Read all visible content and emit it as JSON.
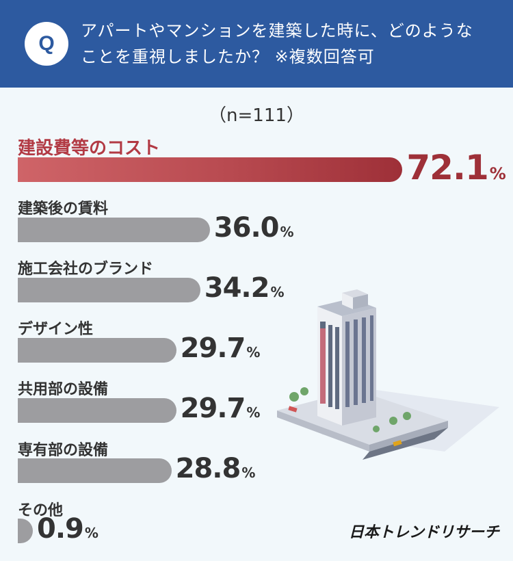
{
  "header": {
    "badge": "Q",
    "question_line1": "アパートやマンションを建築した時に、どのような",
    "question_line2": "ことを重視しましたか？ ※複数回答可"
  },
  "sample_size": "（n=111）",
  "brand": "日本トレンドリサーチ",
  "colors": {
    "header": "#2d5aa0",
    "highlight": "#b23a44",
    "bar": "#9d9da0"
  },
  "chart_data": {
    "type": "bar",
    "orientation": "horizontal",
    "unit": "%",
    "categories": [
      "建設費等のコスト",
      "建築後の賃料",
      "施工会社のブランド",
      "デザイン性",
      "共用部の設備",
      "専有部の設備",
      "その他"
    ],
    "values": [
      72.1,
      36.0,
      34.2,
      29.7,
      29.7,
      28.8,
      0.9
    ],
    "value_labels": [
      "72.1",
      "36.0",
      "34.2",
      "29.7",
      "29.7",
      "28.8",
      "0.9"
    ],
    "xlim": [
      0,
      100
    ],
    "highlight_index": 0
  }
}
